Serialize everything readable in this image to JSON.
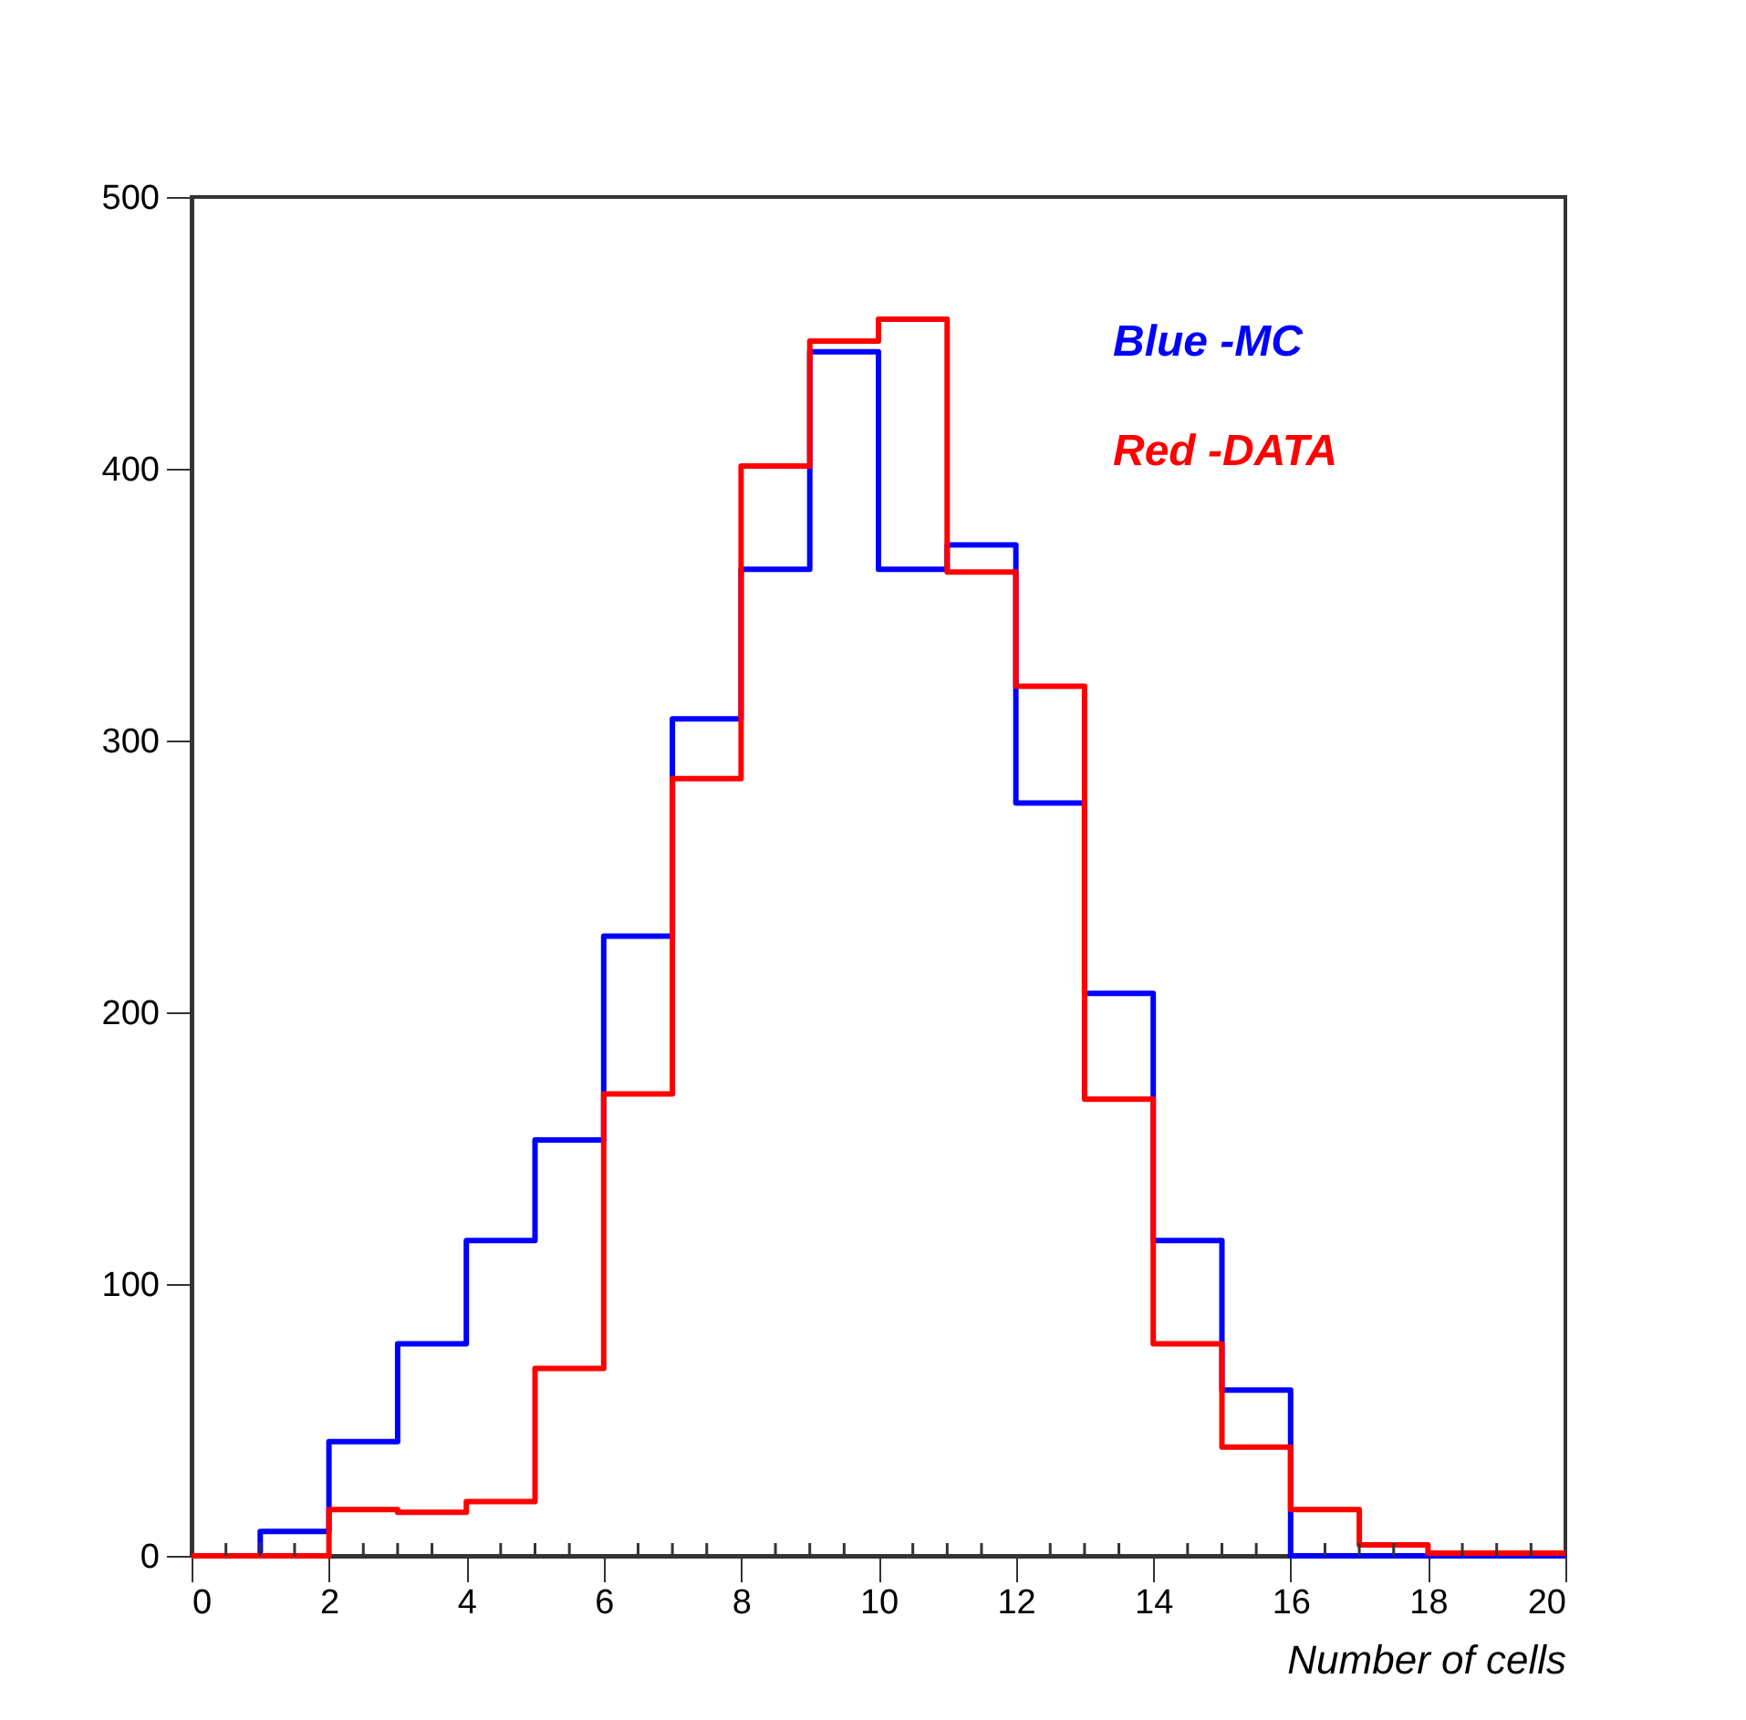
{
  "chart_data": {
    "type": "histogram",
    "xlabel": "Number of cells",
    "bins": [
      0,
      1,
      2,
      3,
      4,
      5,
      6,
      7,
      8,
      9,
      10,
      11,
      12,
      13,
      14,
      15,
      16,
      17,
      18,
      19,
      20
    ],
    "series": [
      {
        "name": "Blue -MC",
        "color": "#0000ff",
        "values": [
          0,
          9,
          42,
          78,
          116,
          153,
          228,
          308,
          363,
          443,
          363,
          372,
          277,
          207,
          116,
          61,
          0,
          0,
          0,
          0
        ]
      },
      {
        "name": "Red -DATA",
        "color": "#ff0000",
        "values": [
          0,
          0,
          17,
          16,
          20,
          69,
          170,
          286,
          401,
          447,
          455,
          362,
          320,
          168,
          78,
          40,
          17,
          4,
          1,
          1
        ]
      }
    ],
    "xlim": [
      0,
      20
    ],
    "xticks": [
      0,
      2,
      4,
      6,
      8,
      10,
      12,
      14,
      16,
      18,
      20
    ],
    "ylim": [
      0,
      500
    ],
    "yticks": [
      0,
      100,
      200,
      300,
      400,
      500
    ],
    "grid": false,
    "legend": "top right"
  }
}
